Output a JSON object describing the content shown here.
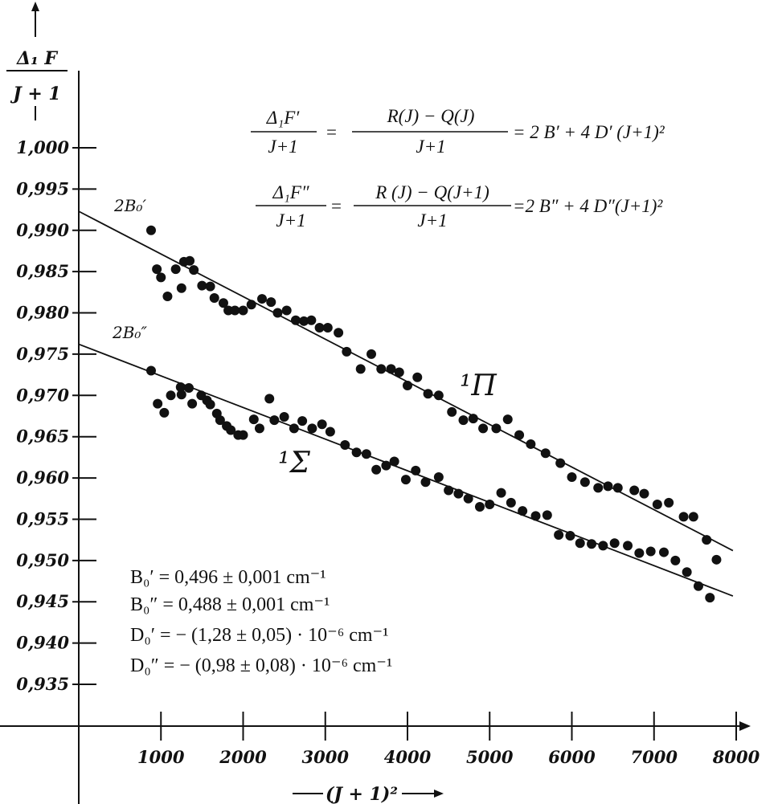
{
  "chart_data": {
    "type": "scatter",
    "x_axis": {
      "label": "(J + 1)²",
      "range": [
        0,
        8200
      ],
      "ticks": [
        1000,
        2000,
        3000,
        4000,
        5000,
        6000,
        7000,
        8000
      ],
      "tick_labels": [
        "1000",
        "2000",
        "3000",
        "4000",
        "5000",
        "6000",
        "7000",
        "8000"
      ]
    },
    "y_axis": {
      "label_top": "Δ₁ F",
      "label_bottom": "J + 1",
      "range": [
        0.93,
        1.002
      ],
      "ticks": [
        1.0,
        0.995,
        0.99,
        0.985,
        0.98,
        0.975,
        0.97,
        0.965,
        0.96,
        0.955,
        0.95,
        0.945,
        0.94,
        0.935
      ],
      "tick_labels": [
        "1,000",
        "0,995",
        "0,990",
        "0,985",
        "0,980",
        "0,975",
        "0,970",
        "0,965",
        "0,960",
        "0,955",
        "0,950",
        "0,945",
        "0,940",
        "0,935"
      ]
    },
    "grid": false,
    "legend": "none",
    "equations": {
      "pi_lhs_num": "Δ₁F′",
      "pi_lhs_den": "J+1",
      "pi_mid_num": "R(J) − Q(J)",
      "pi_mid_den": "J+1",
      "pi_rhs": "= 2 B′ + 4 D′ (J+1)²",
      "sigma_lhs_num": "Δ₁F″",
      "sigma_lhs_den": "J+1",
      "sigma_mid_num": "R (J) − Q(J+1)",
      "sigma_mid_den": "J+1",
      "sigma_rhs": "=2 B″ + 4 D″(J+1)²"
    },
    "constants": [
      "B₀′  = 0,496 ± 0,001 cm⁻¹",
      "B₀″ = 0,488 ± 0,001 cm⁻¹",
      "D₀′  = − (1,28 ± 0,05) · 10⁻⁶ cm⁻¹",
      "D₀″ = − (0,98 ± 0,08) · 10⁻⁶ cm⁻¹"
    ],
    "series": [
      {
        "name": "¹Π",
        "intercept_label": "2B₀′",
        "fit_line": [
          [
            0,
            0.9923
          ],
          [
            7960,
            0.9512
          ]
        ],
        "points": [
          [
            880,
            0.99
          ],
          [
            950,
            0.9853
          ],
          [
            1000,
            0.9843
          ],
          [
            1080,
            0.982
          ],
          [
            1180,
            0.9853
          ],
          [
            1250,
            0.983
          ],
          [
            1280,
            0.9862
          ],
          [
            1350,
            0.9863
          ],
          [
            1400,
            0.9852
          ],
          [
            1500,
            0.9833
          ],
          [
            1600,
            0.9832
          ],
          [
            1650,
            0.9818
          ],
          [
            1760,
            0.9812
          ],
          [
            1820,
            0.9803
          ],
          [
            1900,
            0.9803
          ],
          [
            2000,
            0.9803
          ],
          [
            2100,
            0.981
          ],
          [
            2230,
            0.9817
          ],
          [
            2340,
            0.9813
          ],
          [
            2420,
            0.98
          ],
          [
            2530,
            0.9803
          ],
          [
            2640,
            0.9791
          ],
          [
            2740,
            0.979
          ],
          [
            2830,
            0.9791
          ],
          [
            2930,
            0.9782
          ],
          [
            3030,
            0.9782
          ],
          [
            3160,
            0.9776
          ],
          [
            3260,
            0.9753
          ],
          [
            3430,
            0.9732
          ],
          [
            3560,
            0.975
          ],
          [
            3680,
            0.9732
          ],
          [
            3800,
            0.9732
          ],
          [
            3900,
            0.9728
          ],
          [
            4000,
            0.9712
          ],
          [
            4120,
            0.9722
          ],
          [
            4250,
            0.9702
          ],
          [
            4380,
            0.97
          ],
          [
            4540,
            0.968
          ],
          [
            4680,
            0.967
          ],
          [
            4800,
            0.9672
          ],
          [
            4920,
            0.966
          ],
          [
            5080,
            0.966
          ],
          [
            5220,
            0.9671
          ],
          [
            5360,
            0.9652
          ],
          [
            5500,
            0.9641
          ],
          [
            5680,
            0.963
          ],
          [
            5860,
            0.9618
          ],
          [
            6000,
            0.9601
          ],
          [
            6160,
            0.9595
          ],
          [
            6320,
            0.9588
          ],
          [
            6440,
            0.959
          ],
          [
            6560,
            0.9588
          ],
          [
            6760,
            0.9585
          ],
          [
            6880,
            0.9581
          ],
          [
            7040,
            0.9568
          ],
          [
            7180,
            0.957
          ],
          [
            7360,
            0.9553
          ],
          [
            7480,
            0.9553
          ],
          [
            7640,
            0.9525
          ],
          [
            7760,
            0.9501
          ]
        ]
      },
      {
        "name": "¹Σ",
        "intercept_label": "2B₀″",
        "fit_line": [
          [
            0,
            0.9762
          ],
          [
            7960,
            0.9457
          ]
        ],
        "points": [
          [
            880,
            0.973
          ],
          [
            960,
            0.969
          ],
          [
            1040,
            0.9679
          ],
          [
            1120,
            0.97
          ],
          [
            1240,
            0.971
          ],
          [
            1250,
            0.9701
          ],
          [
            1340,
            0.9709
          ],
          [
            1380,
            0.969
          ],
          [
            1490,
            0.97
          ],
          [
            1560,
            0.9694
          ],
          [
            1600,
            0.9689
          ],
          [
            1680,
            0.9678
          ],
          [
            1720,
            0.967
          ],
          [
            1800,
            0.9663
          ],
          [
            1850,
            0.9658
          ],
          [
            1940,
            0.9652
          ],
          [
            2000,
            0.9652
          ],
          [
            2130,
            0.9671
          ],
          [
            2200,
            0.966
          ],
          [
            2320,
            0.9696
          ],
          [
            2380,
            0.967
          ],
          [
            2500,
            0.9674
          ],
          [
            2620,
            0.966
          ],
          [
            2720,
            0.9669
          ],
          [
            2840,
            0.966
          ],
          [
            2960,
            0.9665
          ],
          [
            3060,
            0.9656
          ],
          [
            3240,
            0.964
          ],
          [
            3380,
            0.9631
          ],
          [
            3500,
            0.9629
          ],
          [
            3620,
            0.961
          ],
          [
            3740,
            0.9615
          ],
          [
            3840,
            0.962
          ],
          [
            3980,
            0.9598
          ],
          [
            4100,
            0.9609
          ],
          [
            4220,
            0.9595
          ],
          [
            4380,
            0.9601
          ],
          [
            4500,
            0.9585
          ],
          [
            4620,
            0.9581
          ],
          [
            4740,
            0.9575
          ],
          [
            4880,
            0.9565
          ],
          [
            5000,
            0.9568
          ],
          [
            5140,
            0.9582
          ],
          [
            5260,
            0.957
          ],
          [
            5400,
            0.956
          ],
          [
            5560,
            0.9554
          ],
          [
            5700,
            0.9555
          ],
          [
            5840,
            0.9531
          ],
          [
            5980,
            0.953
          ],
          [
            6100,
            0.9521
          ],
          [
            6240,
            0.952
          ],
          [
            6380,
            0.9518
          ],
          [
            6520,
            0.9521
          ],
          [
            6680,
            0.9518
          ],
          [
            6820,
            0.9509
          ],
          [
            6960,
            0.9511
          ],
          [
            7120,
            0.951
          ],
          [
            7260,
            0.95
          ],
          [
            7400,
            0.9486
          ],
          [
            7540,
            0.9469
          ],
          [
            7680,
            0.9455
          ]
        ]
      }
    ]
  }
}
